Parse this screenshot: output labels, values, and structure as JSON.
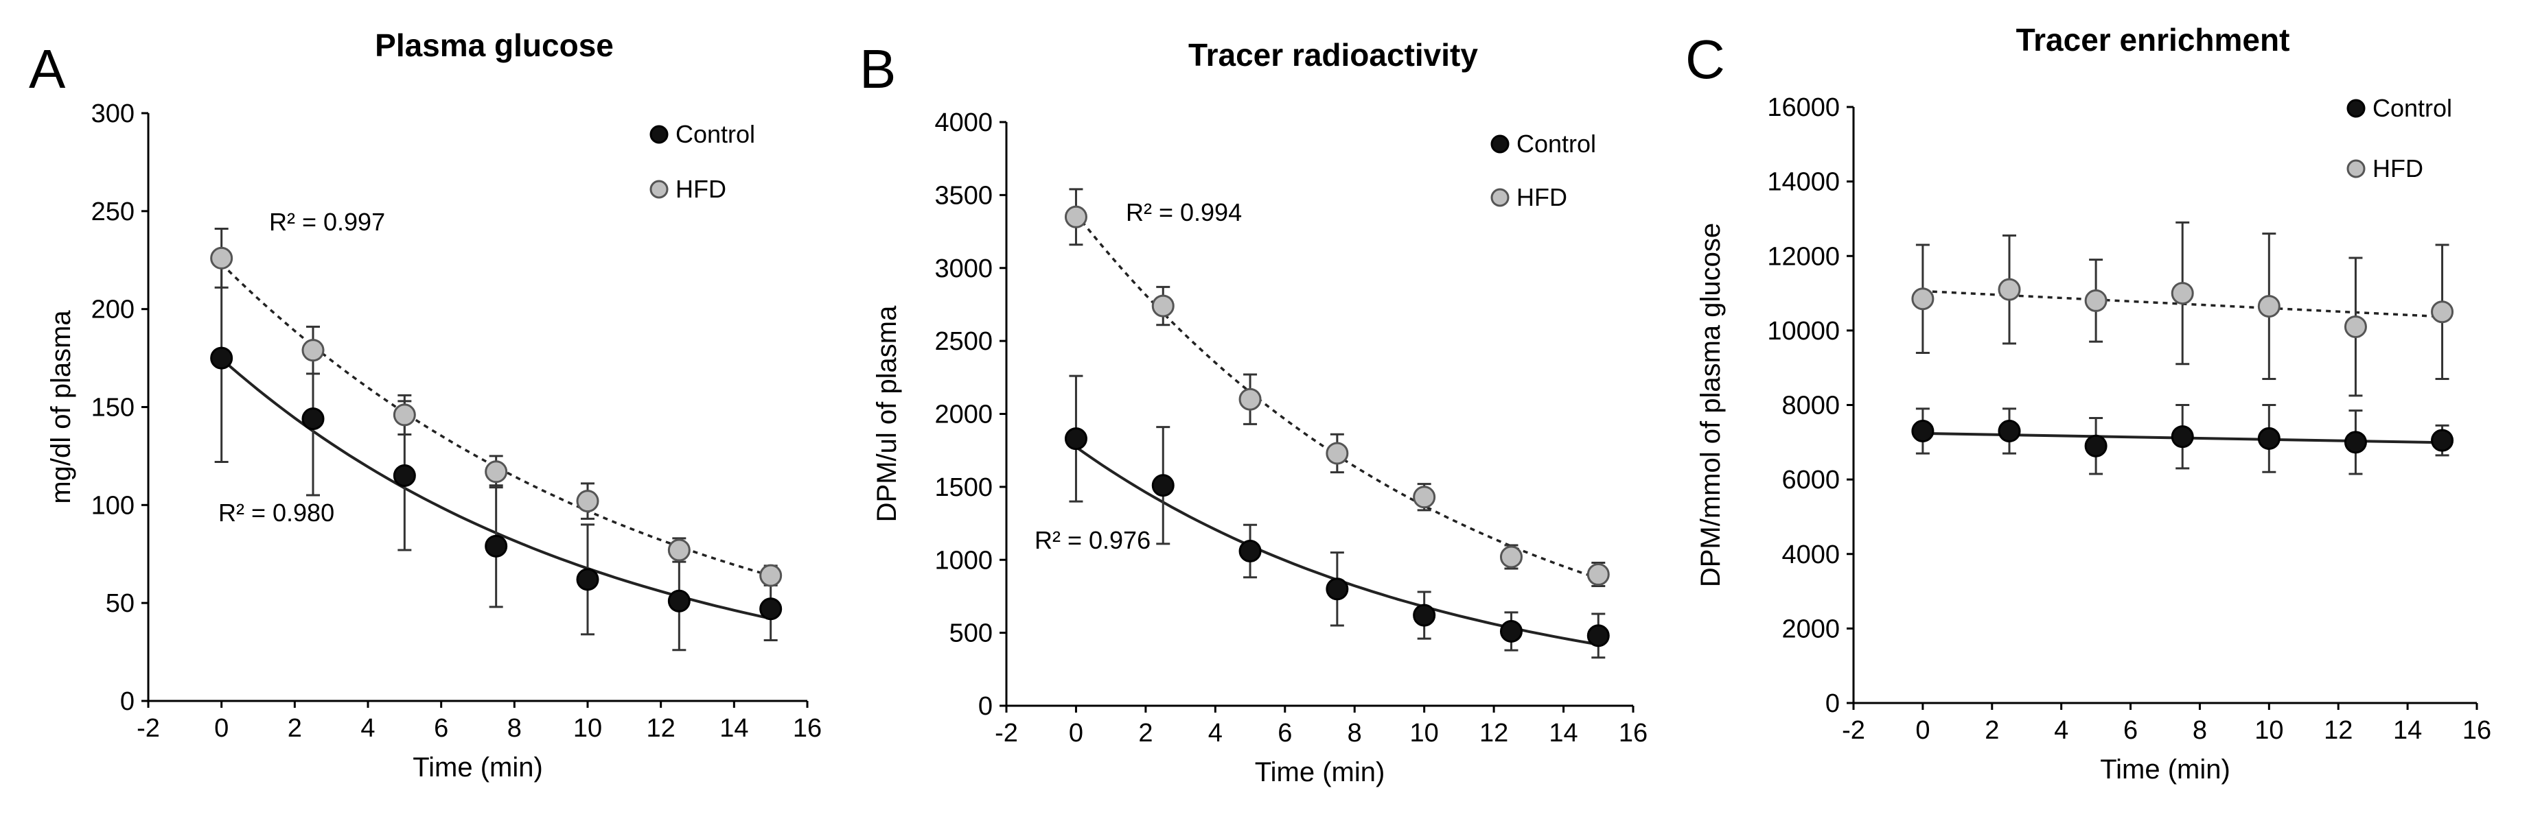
{
  "chart_data": [
    {
      "panel": "A",
      "type": "scatter",
      "title": "Plasma glucose",
      "xlabel": "Time (min)",
      "ylabel": "mg/dl of plasma",
      "xlim": [
        -2,
        16
      ],
      "ylim": [
        0,
        300
      ],
      "xticks": [
        "-2",
        "0",
        "2",
        "4",
        "6",
        "8",
        "10",
        "12",
        "14",
        "16"
      ],
      "yticks": [
        "0",
        "50",
        "100",
        "150",
        "200",
        "250",
        "300"
      ],
      "legend_position": "top-right",
      "series": [
        {
          "name": "Control",
          "x": [
            0,
            2.5,
            5,
            7.5,
            10,
            12.5,
            15
          ],
          "y": [
            175,
            144,
            115,
            79,
            62,
            51,
            47
          ],
          "err": [
            53,
            39,
            38,
            31,
            28,
            25,
            16
          ],
          "r2_label": "R² = 0.980",
          "fit": "exponential",
          "fit_line": "solid"
        },
        {
          "name": "HFD",
          "x": [
            0,
            2.5,
            5,
            7.5,
            10,
            12.5,
            15
          ],
          "y": [
            226,
            179,
            146,
            117,
            102,
            77,
            64
          ],
          "err": [
            15,
            12,
            10,
            8,
            9,
            6,
            5
          ],
          "r2_label": "R² = 0.997",
          "fit": "exponential",
          "fit_line": "dotted"
        }
      ]
    },
    {
      "panel": "B",
      "type": "scatter",
      "title": "Tracer radioactivity",
      "xlabel": "Time (min)",
      "ylabel": "DPM/ul of plasma",
      "xlim": [
        -2,
        16
      ],
      "ylim": [
        0,
        4000
      ],
      "xticks": [
        "-2",
        "0",
        "2",
        "4",
        "6",
        "8",
        "10",
        "12",
        "14",
        "16"
      ],
      "yticks": [
        "0",
        "500",
        "1000",
        "1500",
        "2000",
        "2500",
        "3000",
        "3500",
        "4000"
      ],
      "legend_position": "top-right",
      "series": [
        {
          "name": "Control",
          "x": [
            0,
            2.5,
            5,
            7.5,
            10,
            12.5,
            15
          ],
          "y": [
            1830,
            1510,
            1060,
            800,
            620,
            510,
            480
          ],
          "err": [
            430,
            400,
            180,
            250,
            160,
            130,
            150
          ],
          "r2_label": "R² = 0.976",
          "fit": "exponential",
          "fit_line": "solid"
        },
        {
          "name": "HFD",
          "x": [
            0,
            2.5,
            5,
            7.5,
            10,
            12.5,
            15
          ],
          "y": [
            3350,
            2740,
            2100,
            1730,
            1430,
            1020,
            900
          ],
          "err": [
            190,
            130,
            170,
            130,
            90,
            80,
            80
          ],
          "r2_label": "R² = 0.994",
          "fit": "exponential",
          "fit_line": "dotted"
        }
      ]
    },
    {
      "panel": "C",
      "type": "scatter",
      "title": "Tracer enrichment",
      "xlabel": "Time (min)",
      "ylabel": "DPM/mmol of plasma glucose",
      "xlim": [
        -2,
        16
      ],
      "ylim": [
        0,
        16000
      ],
      "xticks": [
        "-2",
        "0",
        "2",
        "4",
        "6",
        "8",
        "10",
        "12",
        "14",
        "16"
      ],
      "yticks": [
        "0",
        "2000",
        "4000",
        "6000",
        "8000",
        "10000",
        "12000",
        "14000",
        "16000"
      ],
      "legend_position": "top-right",
      "series": [
        {
          "name": "Control",
          "x": [
            0,
            2.5,
            5,
            7.5,
            10,
            12.5,
            15
          ],
          "y": [
            7300,
            7300,
            6900,
            7150,
            7100,
            7000,
            7050
          ],
          "err": [
            600,
            600,
            750,
            850,
            900,
            850,
            400
          ],
          "fit": "linear",
          "fit_line": "solid"
        },
        {
          "name": "HFD",
          "x": [
            0,
            2.5,
            5,
            7.5,
            10,
            12.5,
            15
          ],
          "y": [
            10850,
            11100,
            10800,
            11000,
            10650,
            10100,
            10500
          ],
          "err": [
            1450,
            1450,
            1100,
            1900,
            1950,
            1850,
            1800
          ],
          "fit": "linear",
          "fit_line": "dotted"
        }
      ]
    }
  ],
  "colors": {
    "control_marker": "#111111",
    "hfd_marker": "#bfbfbf",
    "axis": "#000000"
  }
}
